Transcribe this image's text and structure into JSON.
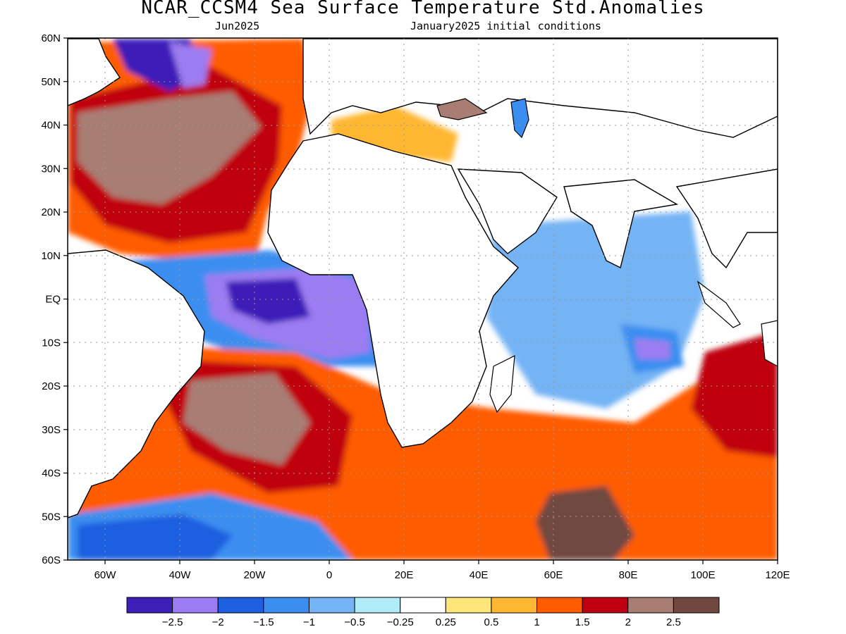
{
  "title": "NCAR_CCSM4 Sea Surface Temperature Std.Anomalies",
  "subtitle_left": "Jun2025",
  "subtitle_right": "January2025 initial conditions",
  "map": {
    "lon_range": [
      -70,
      120
    ],
    "lat_range": [
      -60,
      60
    ],
    "x_ticks": [
      "60W",
      "40W",
      "20W",
      "0",
      "20E",
      "40E",
      "60E",
      "80E",
      "100E",
      "120E"
    ],
    "y_ticks": [
      "60N",
      "50N",
      "40N",
      "30N",
      "20N",
      "10N",
      "EQ",
      "10S",
      "20S",
      "30S",
      "40S",
      "50S",
      "60S"
    ]
  },
  "colorbar": {
    "colors": [
      "#3d1fb8",
      "#9c7cf2",
      "#1e5fe0",
      "#3b8ef0",
      "#74b4f4",
      "#b0ecf8",
      "#ffffff",
      "#ffe57a",
      "#ffb732",
      "#ff5c00",
      "#c00010",
      "#a87d73",
      "#70483f"
    ],
    "labels": [
      "−2.5",
      "−2",
      "−1.5",
      "−1",
      "−0.5",
      "−0.25",
      "0.25",
      "0.5",
      "1",
      "1.5",
      "2",
      "2.5"
    ]
  }
}
